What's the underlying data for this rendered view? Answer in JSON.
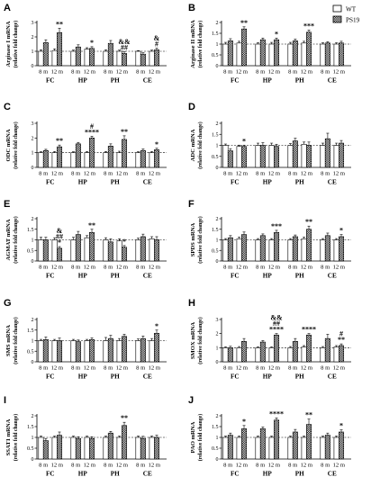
{
  "figure": {
    "legend": {
      "items": [
        {
          "label": "WT",
          "pattern": "white"
        },
        {
          "label": "PS19",
          "pattern": "check"
        }
      ]
    },
    "ylabel_sub": "(relative fold change)"
  },
  "chart_data": [
    {
      "type": "bar",
      "panel": "A",
      "ylabel": "Arginase I mRNA",
      "ylim": [
        0,
        3
      ],
      "yticks": [
        0,
        1,
        2,
        3
      ],
      "groups": [
        "FC",
        "HP",
        "PH",
        "CE"
      ],
      "subcategories": [
        "8 m",
        "12 m"
      ],
      "series": [
        {
          "name": "WT",
          "values": [
            [
              1.0,
              1.05
            ],
            [
              1.0,
              1.15
            ],
            [
              1.0,
              1.0
            ],
            [
              1.0,
              1.0
            ]
          ],
          "errors": [
            [
              0.1,
              0.12
            ],
            [
              0.08,
              0.1
            ],
            [
              0.1,
              0.08
            ],
            [
              0.05,
              0.08
            ]
          ]
        },
        {
          "name": "PS19",
          "values": [
            [
              1.6,
              2.3
            ],
            [
              1.3,
              1.2
            ],
            [
              1.55,
              0.85
            ],
            [
              0.8,
              1.1
            ]
          ],
          "errors": [
            [
              0.2,
              0.3
            ],
            [
              0.15,
              0.12
            ],
            [
              0.2,
              0.12
            ],
            [
              0.1,
              0.12
            ]
          ]
        }
      ],
      "annotations": [
        [
          "",
          "**"
        ],
        [
          "",
          "*"
        ],
        [
          "",
          "&&\n##"
        ],
        [
          "",
          "&\n#"
        ]
      ]
    },
    {
      "type": "bar",
      "panel": "B",
      "ylabel": "Arginase II mRNA",
      "ylim": [
        0,
        2
      ],
      "yticks": [
        0,
        0.5,
        1,
        1.5,
        2
      ],
      "groups": [
        "FC",
        "HP",
        "PH",
        "CE"
      ],
      "subcategories": [
        "8 m",
        "12 m"
      ],
      "series": [
        {
          "name": "WT",
          "values": [
            [
              1.0,
              1.05
            ],
            [
              1.0,
              1.0
            ],
            [
              1.0,
              1.05
            ],
            [
              1.0,
              1.0
            ]
          ],
          "errors": [
            [
              0.08,
              0.08
            ],
            [
              0.06,
              0.08
            ],
            [
              0.08,
              0.08
            ],
            [
              0.06,
              0.06
            ]
          ]
        },
        {
          "name": "PS19",
          "values": [
            [
              1.15,
              1.7
            ],
            [
              1.2,
              1.2
            ],
            [
              1.15,
              1.55
            ],
            [
              1.05,
              1.05
            ]
          ],
          "errors": [
            [
              0.1,
              0.1
            ],
            [
              0.08,
              0.08
            ],
            [
              0.08,
              0.1
            ],
            [
              0.06,
              0.08
            ]
          ]
        }
      ],
      "annotations": [
        [
          "",
          "**"
        ],
        [
          "",
          "*"
        ],
        [
          "",
          "***"
        ],
        [
          "",
          ""
        ]
      ]
    },
    {
      "type": "bar",
      "panel": "C",
      "ylabel": "ODC mRNA",
      "ylim": [
        0,
        3
      ],
      "yticks": [
        0,
        1,
        2,
        3
      ],
      "groups": [
        "FC",
        "HP",
        "PH",
        "CE"
      ],
      "subcategories": [
        "8 m",
        "12 m"
      ],
      "series": [
        {
          "name": "WT",
          "values": [
            [
              1.0,
              1.0
            ],
            [
              1.0,
              1.0
            ],
            [
              1.0,
              1.0
            ],
            [
              1.0,
              1.0
            ]
          ],
          "errors": [
            [
              0.06,
              0.08
            ],
            [
              0.06,
              0.08
            ],
            [
              0.08,
              0.1
            ],
            [
              0.06,
              0.08
            ]
          ]
        },
        {
          "name": "PS19",
          "values": [
            [
              1.15,
              1.4
            ],
            [
              1.6,
              2.0
            ],
            [
              1.45,
              1.9
            ],
            [
              1.15,
              1.2
            ]
          ],
          "errors": [
            [
              0.08,
              0.12
            ],
            [
              0.1,
              0.12
            ],
            [
              0.15,
              0.25
            ],
            [
              0.1,
              0.1
            ]
          ]
        }
      ],
      "annotations": [
        [
          "",
          "**"
        ],
        [
          "",
          "#\n****"
        ],
        [
          "",
          "**"
        ],
        [
          "",
          "*"
        ]
      ]
    },
    {
      "type": "bar",
      "panel": "D",
      "ylabel": "ADC mRNA",
      "ylim": [
        0,
        2
      ],
      "yticks": [
        0,
        0.5,
        1,
        1.5,
        2
      ],
      "groups": [
        "FC",
        "HP",
        "PH",
        "CE"
      ],
      "subcategories": [
        "8 m",
        "12 m"
      ],
      "series": [
        {
          "name": "WT",
          "values": [
            [
              1.0,
              0.95
            ],
            [
              1.0,
              1.0
            ],
            [
              1.0,
              1.05
            ],
            [
              1.0,
              1.0
            ]
          ],
          "errors": [
            [
              0.06,
              0.06
            ],
            [
              0.1,
              0.1
            ],
            [
              0.08,
              0.1
            ],
            [
              0.1,
              0.1
            ]
          ]
        },
        {
          "name": "PS19",
          "values": [
            [
              0.75,
              0.95
            ],
            [
              1.0,
              0.95
            ],
            [
              1.2,
              1.0
            ],
            [
              1.3,
              1.1
            ]
          ],
          "errors": [
            [
              0.1,
              0.06
            ],
            [
              0.12,
              0.1
            ],
            [
              0.12,
              0.15
            ],
            [
              0.25,
              0.12
            ]
          ]
        }
      ],
      "annotations": [
        [
          "",
          "*"
        ],
        [
          "",
          ""
        ],
        [
          "",
          ""
        ],
        [
          "",
          ""
        ]
      ]
    },
    {
      "type": "bar",
      "panel": "E",
      "ylabel": "AGMAT mRNA",
      "ylim": [
        0,
        2
      ],
      "yticks": [
        0,
        0.5,
        1,
        1.5,
        2
      ],
      "groups": [
        "FC",
        "HP",
        "PH",
        "CE"
      ],
      "subcategories": [
        "8 m",
        "12 m"
      ],
      "series": [
        {
          "name": "WT",
          "values": [
            [
              1.0,
              1.0
            ],
            [
              1.0,
              1.1
            ],
            [
              1.0,
              0.95
            ],
            [
              1.0,
              1.05
            ]
          ],
          "errors": [
            [
              0.12,
              0.1
            ],
            [
              0.12,
              0.1
            ],
            [
              0.1,
              0.1
            ],
            [
              0.08,
              0.1
            ]
          ]
        },
        {
          "name": "PS19",
          "values": [
            [
              1.0,
              0.6
            ],
            [
              1.25,
              1.35
            ],
            [
              0.9,
              0.65
            ],
            [
              1.15,
              1.0
            ]
          ],
          "errors": [
            [
              0.12,
              0.08
            ],
            [
              0.15,
              0.15
            ],
            [
              0.15,
              0.08
            ],
            [
              0.12,
              0.15
            ]
          ]
        }
      ],
      "annotations": [
        [
          "",
          "&\n##\n*"
        ],
        [
          "",
          "**"
        ],
        [
          "",
          "*"
        ],
        [
          "",
          ""
        ]
      ]
    },
    {
      "type": "bar",
      "panel": "F",
      "ylabel": "SPDS mRNA",
      "ylim": [
        0,
        2
      ],
      "yticks": [
        0,
        0.5,
        1,
        1.5,
        2
      ],
      "groups": [
        "FC",
        "HP",
        "PH",
        "CE"
      ],
      "subcategories": [
        "8 m",
        "12 m"
      ],
      "series": [
        {
          "name": "WT",
          "values": [
            [
              1.0,
              1.05
            ],
            [
              1.0,
              1.0
            ],
            [
              1.0,
              1.05
            ],
            [
              1.0,
              1.0
            ]
          ],
          "errors": [
            [
              0.06,
              0.08
            ],
            [
              0.06,
              0.06
            ],
            [
              0.06,
              0.08
            ],
            [
              0.06,
              0.06
            ]
          ]
        },
        {
          "name": "PS19",
          "values": [
            [
              1.1,
              1.25
            ],
            [
              1.2,
              1.35
            ],
            [
              1.15,
              1.5
            ],
            [
              1.2,
              1.15
            ]
          ],
          "errors": [
            [
              0.1,
              0.12
            ],
            [
              0.08,
              0.1
            ],
            [
              0.08,
              0.15
            ],
            [
              0.12,
              0.1
            ]
          ]
        }
      ],
      "annotations": [
        [
          "",
          ""
        ],
        [
          "",
          "***"
        ],
        [
          "",
          "**"
        ],
        [
          "",
          "*"
        ]
      ]
    },
    {
      "type": "bar",
      "panel": "G",
      "ylabel": "SMS mRNA",
      "ylim": [
        0,
        2
      ],
      "yticks": [
        0,
        0.5,
        1,
        1.5,
        2
      ],
      "groups": [
        "FC",
        "HP",
        "PH",
        "CE"
      ],
      "subcategories": [
        "8 m",
        "12 m"
      ],
      "series": [
        {
          "name": "WT",
          "values": [
            [
              1.0,
              1.0
            ],
            [
              1.0,
              1.0
            ],
            [
              1.0,
              1.0
            ],
            [
              1.0,
              1.0
            ]
          ],
          "errors": [
            [
              0.06,
              0.06
            ],
            [
              0.06,
              0.06
            ],
            [
              0.15,
              0.1
            ],
            [
              0.08,
              0.1
            ]
          ]
        },
        {
          "name": "PS19",
          "values": [
            [
              1.05,
              1.0
            ],
            [
              0.95,
              1.05
            ],
            [
              1.1,
              1.2
            ],
            [
              1.1,
              1.35
            ]
          ],
          "errors": [
            [
              0.12,
              0.12
            ],
            [
              0.08,
              0.08
            ],
            [
              0.15,
              0.1
            ],
            [
              0.12,
              0.15
            ]
          ]
        }
      ],
      "annotations": [
        [
          "",
          ""
        ],
        [
          "",
          ""
        ],
        [
          "",
          ""
        ],
        [
          "",
          "*"
        ]
      ]
    },
    {
      "type": "bar",
      "panel": "H",
      "ylabel": "SMOX mRNA",
      "ylim": [
        0,
        3
      ],
      "yticks": [
        0,
        1,
        2,
        3
      ],
      "groups": [
        "FC",
        "HP",
        "PH",
        "CE"
      ],
      "subcategories": [
        "8 m",
        "12 m"
      ],
      "series": [
        {
          "name": "WT",
          "values": [
            [
              1.0,
              1.0
            ],
            [
              1.0,
              1.0
            ],
            [
              1.0,
              1.05
            ],
            [
              1.0,
              1.05
            ]
          ],
          "errors": [
            [
              0.06,
              0.08
            ],
            [
              0.06,
              0.06
            ],
            [
              0.08,
              0.1
            ],
            [
              0.08,
              0.1
            ]
          ]
        },
        {
          "name": "PS19",
          "values": [
            [
              1.0,
              1.45
            ],
            [
              1.4,
              1.9
            ],
            [
              1.45,
              1.9
            ],
            [
              1.65,
              1.15
            ]
          ],
          "errors": [
            [
              0.1,
              0.2
            ],
            [
              0.1,
              0.1
            ],
            [
              0.2,
              0.1
            ],
            [
              0.3,
              0.12
            ]
          ]
        }
      ],
      "annotations": [
        [
          "",
          ""
        ],
        [
          "",
          "&&\n##\n****"
        ],
        [
          "",
          "****"
        ],
        [
          "",
          "#\n**"
        ]
      ]
    },
    {
      "type": "bar",
      "panel": "I",
      "ylabel": "SSAT1 mRNA",
      "ylim": [
        0,
        2
      ],
      "yticks": [
        0,
        0.5,
        1,
        1.5,
        2
      ],
      "groups": [
        "FC",
        "HP",
        "PH",
        "CE"
      ],
      "subcategories": [
        "8 m",
        "12 m"
      ],
      "series": [
        {
          "name": "WT",
          "values": [
            [
              1.0,
              1.0
            ],
            [
              1.0,
              1.0
            ],
            [
              1.0,
              1.0
            ],
            [
              1.0,
              1.0
            ]
          ],
          "errors": [
            [
              0.06,
              0.06
            ],
            [
              0.06,
              0.06
            ],
            [
              0.06,
              0.06
            ],
            [
              0.06,
              0.06
            ]
          ]
        },
        {
          "name": "PS19",
          "values": [
            [
              0.85,
              1.1
            ],
            [
              0.95,
              0.95
            ],
            [
              1.2,
              1.55
            ],
            [
              0.95,
              1.0
            ]
          ],
          "errors": [
            [
              0.1,
              0.15
            ],
            [
              0.08,
              0.08
            ],
            [
              0.08,
              0.15
            ],
            [
              0.1,
              0.1
            ]
          ]
        }
      ],
      "annotations": [
        [
          "",
          ""
        ],
        [
          "",
          ""
        ],
        [
          "",
          "**"
        ],
        [
          "",
          ""
        ]
      ]
    },
    {
      "type": "bar",
      "panel": "J",
      "ylabel": "PAO mRNA",
      "ylim": [
        0,
        2
      ],
      "yticks": [
        0,
        0.5,
        1,
        1.5,
        2
      ],
      "groups": [
        "FC",
        "HP",
        "PH",
        "CE"
      ],
      "subcategories": [
        "8 m",
        "12 m"
      ],
      "series": [
        {
          "name": "WT",
          "values": [
            [
              1.0,
              1.0
            ],
            [
              1.0,
              1.0
            ],
            [
              1.0,
              1.0
            ],
            [
              1.0,
              1.0
            ]
          ],
          "errors": [
            [
              0.06,
              0.06
            ],
            [
              0.06,
              0.06
            ],
            [
              0.06,
              0.06
            ],
            [
              0.06,
              0.06
            ]
          ]
        },
        {
          "name": "PS19",
          "values": [
            [
              1.1,
              1.4
            ],
            [
              1.4,
              1.8
            ],
            [
              1.25,
              1.6
            ],
            [
              1.1,
              1.25
            ]
          ],
          "errors": [
            [
              0.1,
              0.15
            ],
            [
              0.08,
              0.1
            ],
            [
              0.12,
              0.25
            ],
            [
              0.1,
              0.1
            ]
          ]
        }
      ],
      "annotations": [
        [
          "",
          "*"
        ],
        [
          "",
          "****"
        ],
        [
          "",
          "**"
        ],
        [
          "",
          "*"
        ]
      ]
    }
  ]
}
